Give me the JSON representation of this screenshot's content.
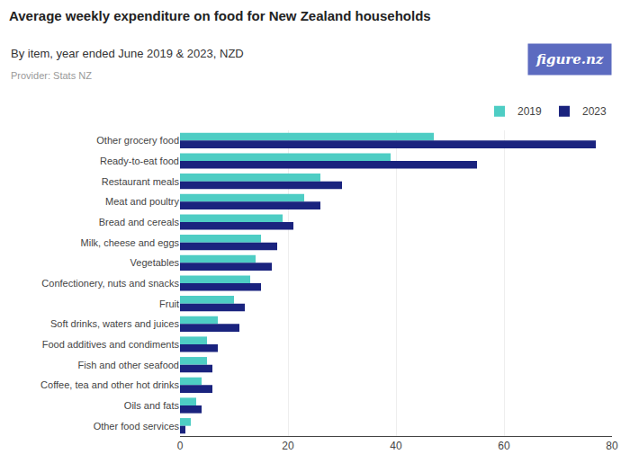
{
  "chart_data": {
    "type": "bar",
    "orientation": "horizontal",
    "title": "Average weekly expenditure on food for New Zealand households",
    "subtitle": "By item, year ended June 2019 & 2023, NZD",
    "annotations": [
      "Provider: Stats NZ",
      "figure.nz"
    ],
    "categories": [
      "Other grocery food",
      "Ready-to-eat food",
      "Restaurant meals",
      "Meat and poultry",
      "Bread and cereals",
      "Milk, cheese and eggs",
      "Vegetables",
      "Confectionery, nuts and snacks",
      "Fruit",
      "Soft drinks, waters and juices",
      "Food additives and condiments",
      "Fish and other seafood",
      "Coffee, tea and other hot drinks",
      "Oils and fats",
      "Other food services"
    ],
    "series": [
      {
        "name": "2019",
        "color": "#4ecdc4",
        "values": [
          47,
          39,
          26,
          23,
          19,
          15,
          14,
          13,
          10,
          7,
          5,
          5,
          4,
          3,
          2
        ]
      },
      {
        "name": "2023",
        "color": "#1a237e",
        "values": [
          77,
          55,
          30,
          26,
          21,
          18,
          17,
          15,
          12,
          11,
          7,
          6,
          6,
          4,
          1
        ]
      }
    ],
    "xlim": [
      0,
      80
    ],
    "xticks": [
      0,
      20,
      40,
      60,
      80
    ],
    "grid": true,
    "legend": "upper right"
  }
}
